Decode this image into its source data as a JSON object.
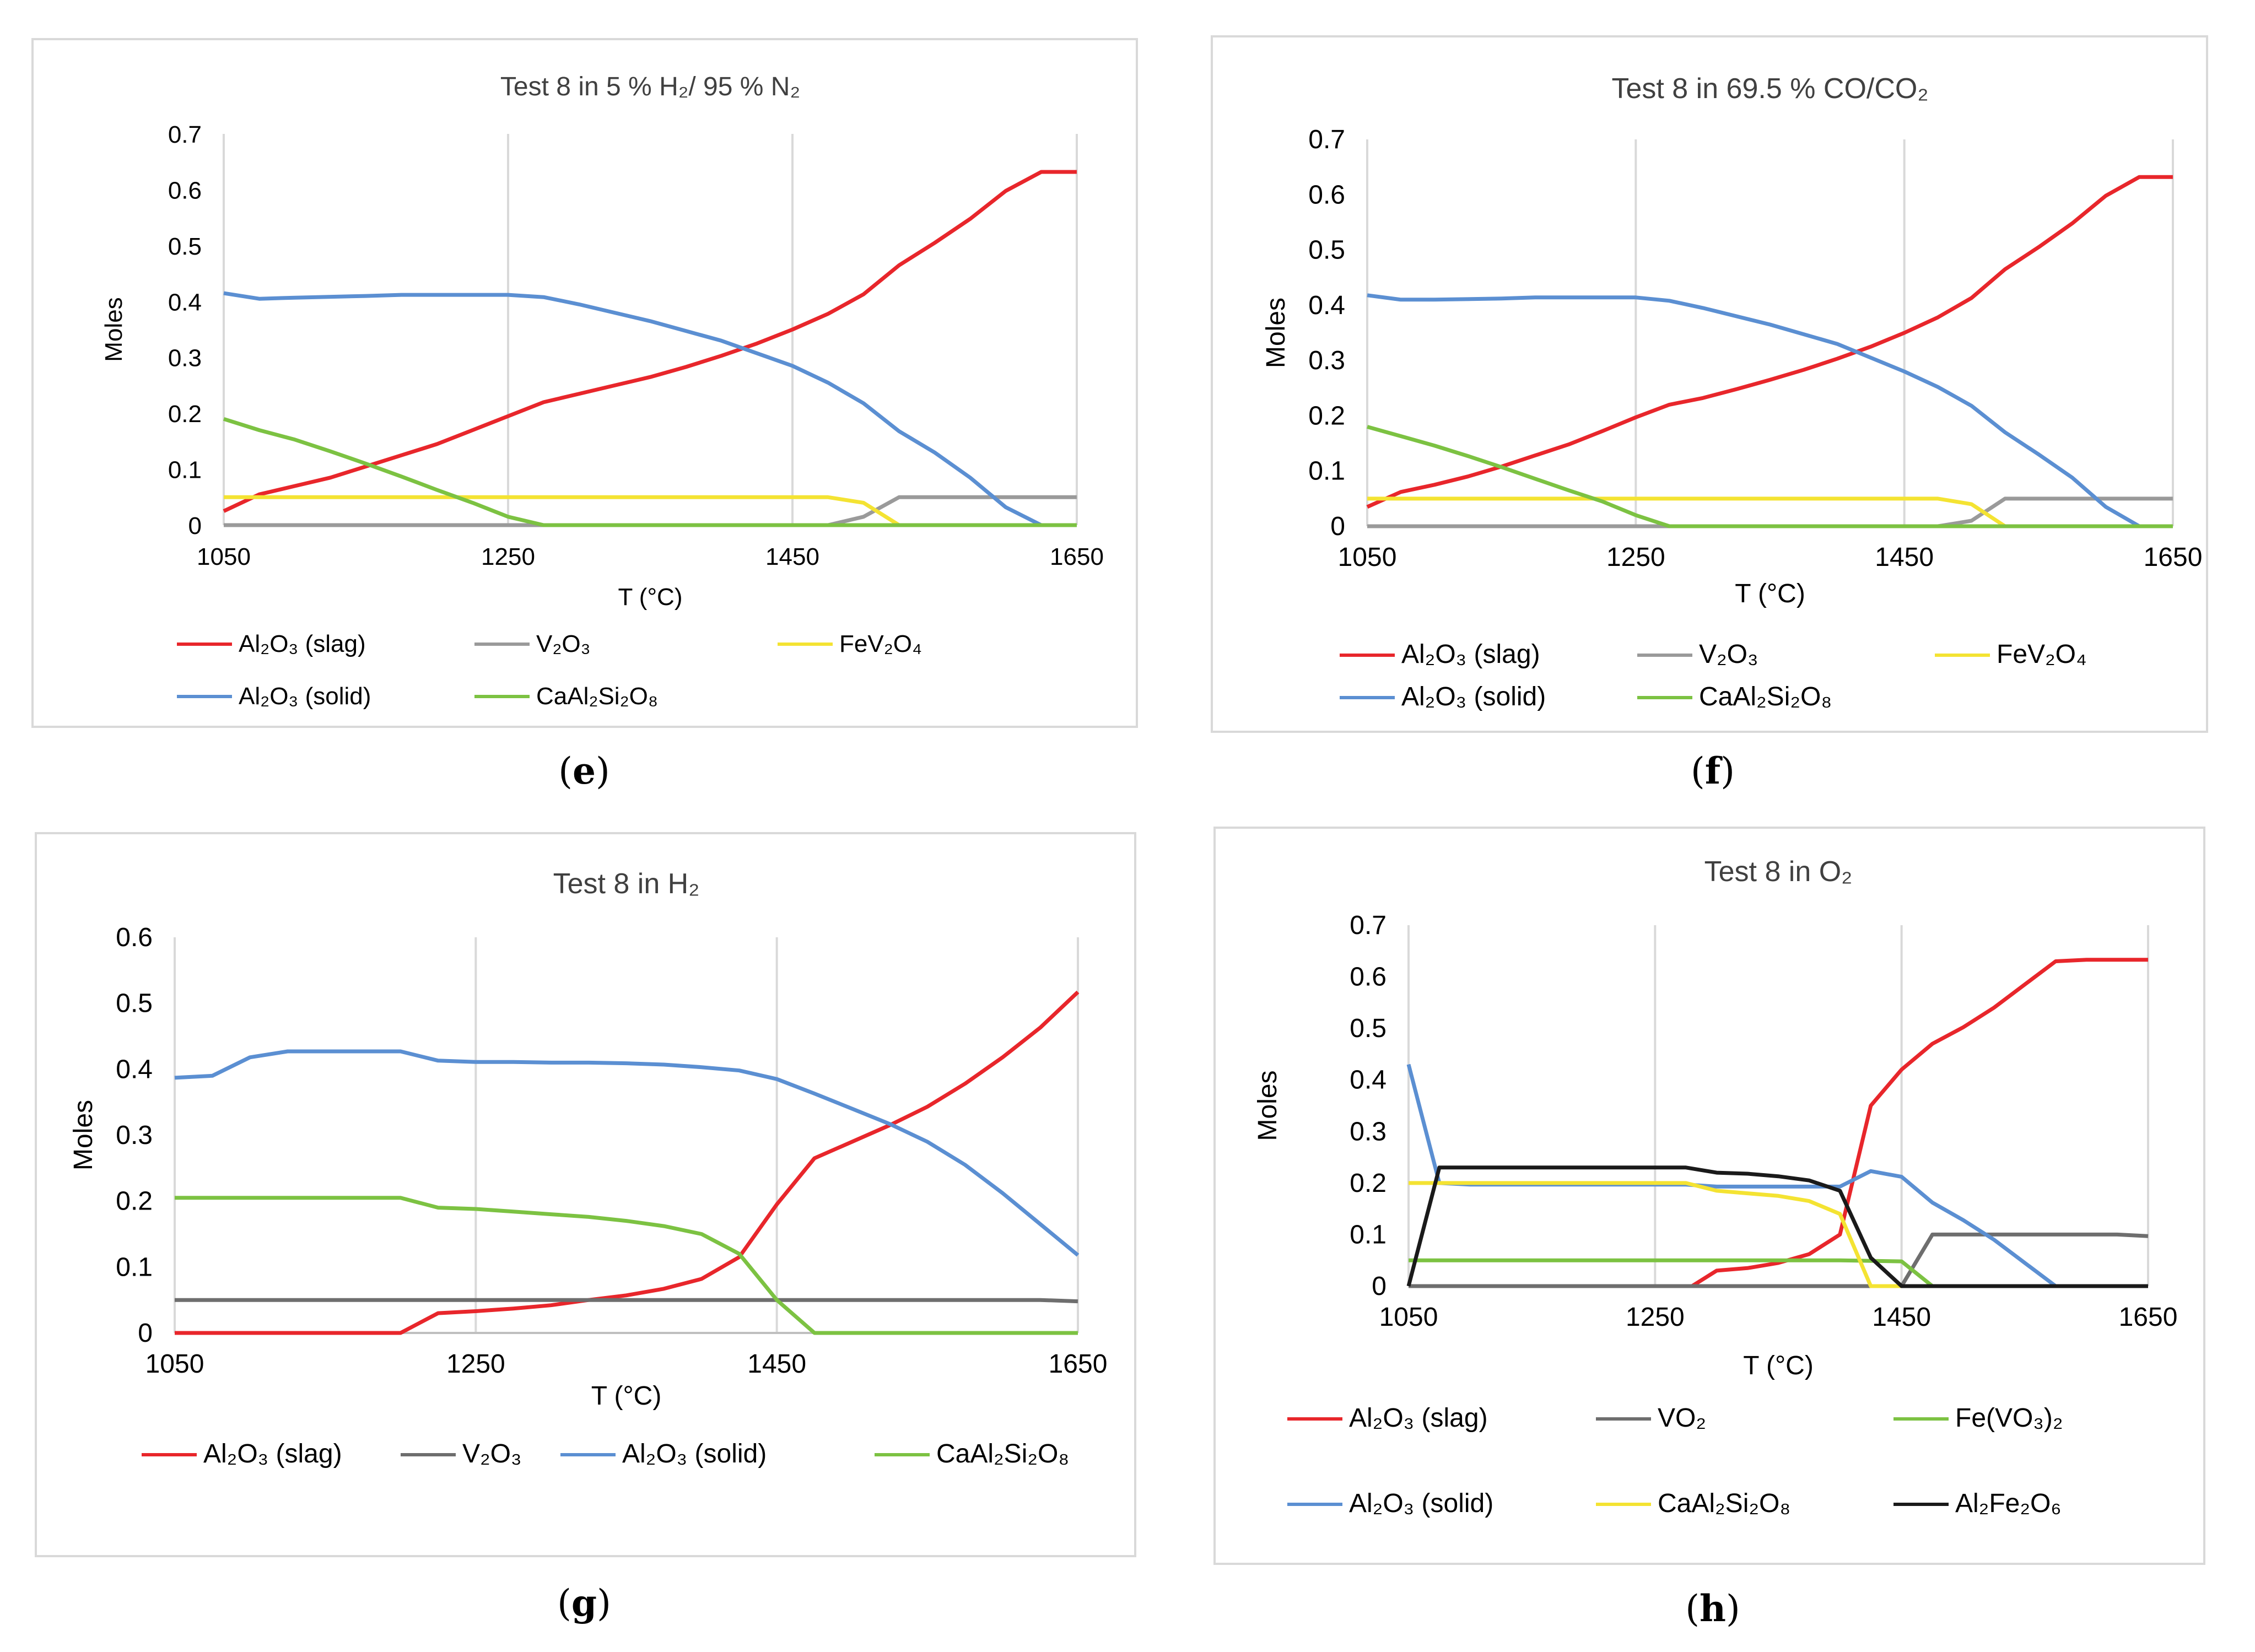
{
  "colors": {
    "red": "#e8262b",
    "blue": "#5b8fd2",
    "green": "#7cc242",
    "yellow": "#f4e332",
    "gray": "#9a9a9a",
    "darkgray": "#6e6e6e",
    "black": "#1a1a1a",
    "grid": "#d9d9d9",
    "axis": "#bfbfbf"
  },
  "chart_data": [
    {
      "id": "e",
      "type": "line",
      "caption": "e",
      "title": "Test 8 in 5 % H₂/ 95 % N₂",
      "xlabel": "T (°C)",
      "ylabel": "Moles",
      "xlim": [
        1050,
        1650
      ],
      "ylim": [
        0,
        0.7
      ],
      "xticks": [
        1050,
        1250,
        1450,
        1650
      ],
      "yticks": [
        "0",
        "0.1",
        "0.2",
        "0.3",
        "0.4",
        "0.5",
        "0.6",
        "0.7"
      ],
      "legend_rows": [
        [
          "Al₂O₃ (slag)",
          "V₂O₃",
          "FeV₂O₄"
        ],
        [
          "Al₂O₃ (solid)",
          "CaAl₂Si₂O₈"
        ]
      ],
      "series": [
        {
          "name": "Al₂O₃ (slag)",
          "color": "red",
          "x": [
            1050,
            1075,
            1100,
            1125,
            1150,
            1175,
            1200,
            1225,
            1250,
            1275,
            1300,
            1325,
            1350,
            1375,
            1400,
            1425,
            1450,
            1475,
            1500,
            1525,
            1550,
            1575,
            1600,
            1625,
            1650
          ],
          "y": [
            0.025,
            0.055,
            0.07,
            0.085,
            0.105,
            0.125,
            0.145,
            0.17,
            0.195,
            0.22,
            0.235,
            0.25,
            0.265,
            0.283,
            0.303,
            0.325,
            0.35,
            0.378,
            0.413,
            0.465,
            0.505,
            0.548,
            0.598,
            0.632,
            0.632
          ]
        },
        {
          "name": "V₂O₃",
          "color": "gray",
          "x": [
            1050,
            1475,
            1500,
            1525,
            1650
          ],
          "y": [
            0,
            0,
            0.015,
            0.05,
            0.05
          ]
        },
        {
          "name": "FeV₂O₄",
          "color": "yellow",
          "x": [
            1050,
            1475,
            1500,
            1525,
            1650
          ],
          "y": [
            0.05,
            0.05,
            0.04,
            0,
            0
          ]
        },
        {
          "name": "Al₂O₃ (solid)",
          "color": "blue",
          "x": [
            1050,
            1075,
            1100,
            1150,
            1175,
            1200,
            1250,
            1275,
            1300,
            1350,
            1400,
            1450,
            1475,
            1500,
            1525,
            1550,
            1575,
            1600,
            1625,
            1650
          ],
          "y": [
            0.415,
            0.405,
            0.407,
            0.41,
            0.412,
            0.412,
            0.412,
            0.408,
            0.395,
            0.365,
            0.33,
            0.285,
            0.255,
            0.218,
            0.168,
            0.13,
            0.085,
            0.032,
            0,
            0
          ]
        },
        {
          "name": "CaAl₂Si₂O₈",
          "color": "green",
          "x": [
            1050,
            1075,
            1100,
            1125,
            1150,
            1175,
            1200,
            1225,
            1250,
            1275,
            1650
          ],
          "y": [
            0.19,
            0.17,
            0.153,
            0.132,
            0.11,
            0.087,
            0.063,
            0.04,
            0.015,
            0,
            0
          ]
        }
      ]
    },
    {
      "id": "f",
      "type": "line",
      "caption": "f",
      "title": "Test 8 in 69.5 % CO/CO₂",
      "xlabel": "T (°C)",
      "ylabel": "Moles",
      "xlim": [
        1050,
        1650
      ],
      "ylim": [
        0,
        0.7
      ],
      "xticks": [
        1050,
        1250,
        1450,
        1650
      ],
      "yticks": [
        "0",
        "0.1",
        "0.2",
        "0.3",
        "0.4",
        "0.5",
        "0.6",
        "0.7"
      ],
      "legend_rows": [
        [
          "Al₂O₃ (slag)",
          "V₂O₃",
          "FeV₂O₄"
        ],
        [
          "Al₂O₃ (solid)",
          "CaAl₂Si₂O₈"
        ]
      ],
      "series": [
        {
          "name": "Al₂O₃ (slag)",
          "color": "red",
          "x": [
            1050,
            1075,
            1100,
            1125,
            1150,
            1175,
            1200,
            1225,
            1250,
            1275,
            1300,
            1325,
            1350,
            1375,
            1400,
            1425,
            1450,
            1475,
            1500,
            1525,
            1550,
            1575,
            1600,
            1625,
            1650
          ],
          "y": [
            0.035,
            0.062,
            0.075,
            0.09,
            0.108,
            0.128,
            0.148,
            0.172,
            0.197,
            0.22,
            0.232,
            0.248,
            0.265,
            0.283,
            0.303,
            0.325,
            0.35,
            0.378,
            0.413,
            0.465,
            0.505,
            0.548,
            0.598,
            0.632,
            0.632
          ]
        },
        {
          "name": "V₂O₃",
          "color": "gray",
          "x": [
            1050,
            1475,
            1500,
            1525,
            1650
          ],
          "y": [
            0,
            0,
            0.01,
            0.05,
            0.05
          ]
        },
        {
          "name": "FeV₂O₄",
          "color": "yellow",
          "x": [
            1050,
            1475,
            1500,
            1525,
            1650
          ],
          "y": [
            0.05,
            0.05,
            0.04,
            0,
            0
          ]
        },
        {
          "name": "Al₂O₃ (solid)",
          "color": "blue",
          "x": [
            1050,
            1075,
            1100,
            1150,
            1175,
            1200,
            1250,
            1275,
            1300,
            1350,
            1400,
            1450,
            1475,
            1500,
            1525,
            1550,
            1575,
            1600,
            1625,
            1650
          ],
          "y": [
            0.418,
            0.41,
            0.41,
            0.412,
            0.414,
            0.414,
            0.414,
            0.408,
            0.395,
            0.365,
            0.33,
            0.28,
            0.252,
            0.218,
            0.17,
            0.13,
            0.088,
            0.035,
            0,
            0
          ]
        },
        {
          "name": "CaAl₂Si₂O₈",
          "color": "green",
          "x": [
            1050,
            1075,
            1100,
            1125,
            1150,
            1175,
            1200,
            1225,
            1250,
            1275,
            1650
          ],
          "y": [
            0.18,
            0.163,
            0.146,
            0.127,
            0.107,
            0.086,
            0.065,
            0.045,
            0.02,
            0,
            0
          ]
        }
      ]
    },
    {
      "id": "g",
      "type": "line",
      "caption": "g",
      "title": "Test 8 in H₂",
      "xlabel": "T (°C)",
      "ylabel": "Moles",
      "xlim": [
        1050,
        1650
      ],
      "ylim": [
        0,
        0.6
      ],
      "xticks": [
        1050,
        1250,
        1450,
        1650
      ],
      "yticks": [
        "0",
        "0.1",
        "0.2",
        "0.3",
        "0.4",
        "0.5",
        "0.6"
      ],
      "legend_rows": [
        [
          "Al₂O₃ (slag)",
          "V₂O₃",
          "Al₂O₃ (solid)",
          "CaAl₂Si₂O₈"
        ]
      ],
      "series": [
        {
          "name": "Al₂O₃ (slag)",
          "color": "red",
          "x": [
            1050,
            1200,
            1225,
            1250,
            1275,
            1300,
            1325,
            1350,
            1375,
            1400,
            1425,
            1450,
            1475,
            1500,
            1525,
            1550,
            1575,
            1600,
            1625,
            1650
          ],
          "y": [
            0,
            0,
            0.03,
            0.033,
            0.037,
            0.042,
            0.05,
            0.057,
            0.067,
            0.082,
            0.115,
            0.195,
            0.265,
            0.29,
            0.315,
            0.343,
            0.378,
            0.418,
            0.463,
            0.517
          ]
        },
        {
          "name": "V₂O₃",
          "color": "darkgray",
          "x": [
            1050,
            1625,
            1650
          ],
          "y": [
            0.05,
            0.05,
            0.048
          ]
        },
        {
          "name": "Al₂O₃ (solid)",
          "color": "blue",
          "x": [
            1050,
            1075,
            1100,
            1125,
            1150,
            1175,
            1200,
            1225,
            1250,
            1275,
            1300,
            1325,
            1350,
            1375,
            1400,
            1425,
            1450,
            1475,
            1500,
            1525,
            1550,
            1575,
            1600,
            1625,
            1650
          ],
          "y": [
            0.387,
            0.39,
            0.418,
            0.427,
            0.427,
            0.427,
            0.427,
            0.413,
            0.411,
            0.411,
            0.41,
            0.41,
            0.409,
            0.407,
            0.403,
            0.398,
            0.385,
            0.363,
            0.34,
            0.317,
            0.29,
            0.255,
            0.212,
            0.165,
            0.118
          ]
        },
        {
          "name": "CaAl₂Si₂O₈",
          "color": "green",
          "x": [
            1050,
            1200,
            1225,
            1250,
            1275,
            1300,
            1325,
            1350,
            1375,
            1400,
            1425,
            1450,
            1475,
            1650
          ],
          "y": [
            0.205,
            0.205,
            0.19,
            0.188,
            0.184,
            0.18,
            0.176,
            0.17,
            0.162,
            0.15,
            0.12,
            0.05,
            0,
            0
          ]
        }
      ]
    },
    {
      "id": "h",
      "type": "line",
      "caption": "h",
      "title": "Test 8 in O₂",
      "xlabel": "T (°C)",
      "ylabel": "Moles",
      "xlim": [
        1050,
        1650
      ],
      "ylim": [
        0,
        0.7
      ],
      "xticks": [
        1050,
        1250,
        1450,
        1650
      ],
      "yticks": [
        "0",
        "0.1",
        "0.2",
        "0.3",
        "0.4",
        "0.5",
        "0.6",
        "0.7"
      ],
      "legend_rows": [
        [
          "Al₂O₃ (slag)",
          "VO₂",
          "Fe(VO₃)₂"
        ],
        [
          "Al₂O₃ (solid)",
          "CaAl₂Si₂O₈",
          "Al₂Fe₂O₆"
        ]
      ],
      "series": [
        {
          "name": "Al₂O₃ (slag)",
          "color": "red",
          "x": [
            1050,
            1280,
            1300,
            1325,
            1350,
            1375,
            1400,
            1425,
            1450,
            1475,
            1500,
            1525,
            1550,
            1575,
            1600,
            1625,
            1650
          ],
          "y": [
            0,
            0,
            0.03,
            0.035,
            0.045,
            0.062,
            0.1,
            0.35,
            0.42,
            0.47,
            0.502,
            0.54,
            0.585,
            0.63,
            0.633,
            0.633,
            0.633
          ]
        },
        {
          "name": "VO₂",
          "color": "darkgray",
          "x": [
            1050,
            1450,
            1475,
            1625,
            1650
          ],
          "y": [
            0,
            0,
            0.1,
            0.1,
            0.097
          ]
        },
        {
          "name": "Fe(VO₃)₂",
          "color": "green",
          "x": [
            1050,
            1400,
            1450,
            1475,
            1650
          ],
          "y": [
            0.05,
            0.05,
            0.048,
            0,
            0
          ]
        },
        {
          "name": "Al₂O₃ (solid)",
          "color": "blue",
          "x": [
            1050,
            1075,
            1100,
            1150,
            1200,
            1250,
            1275,
            1300,
            1325,
            1350,
            1375,
            1400,
            1425,
            1450,
            1475,
            1500,
            1525,
            1550,
            1575,
            1650
          ],
          "y": [
            0.43,
            0.2,
            0.197,
            0.197,
            0.197,
            0.197,
            0.197,
            0.193,
            0.193,
            0.193,
            0.193,
            0.193,
            0.223,
            0.212,
            0.162,
            0.128,
            0.09,
            0.045,
            0,
            0
          ]
        },
        {
          "name": "CaAl₂Si₂O₈",
          "color": "yellow",
          "x": [
            1050,
            1275,
            1300,
            1325,
            1350,
            1375,
            1400,
            1425,
            1450,
            1650
          ],
          "y": [
            0.2,
            0.2,
            0.185,
            0.18,
            0.175,
            0.165,
            0.14,
            0,
            0,
            0
          ]
        },
        {
          "name": "Al₂Fe₂O₆",
          "color": "black",
          "x": [
            1050,
            1075,
            1100,
            1275,
            1300,
            1325,
            1350,
            1375,
            1400,
            1425,
            1450,
            1650
          ],
          "y": [
            0,
            0.23,
            0.23,
            0.23,
            0.22,
            0.218,
            0.213,
            0.205,
            0.185,
            0.055,
            0,
            0
          ]
        }
      ]
    }
  ]
}
